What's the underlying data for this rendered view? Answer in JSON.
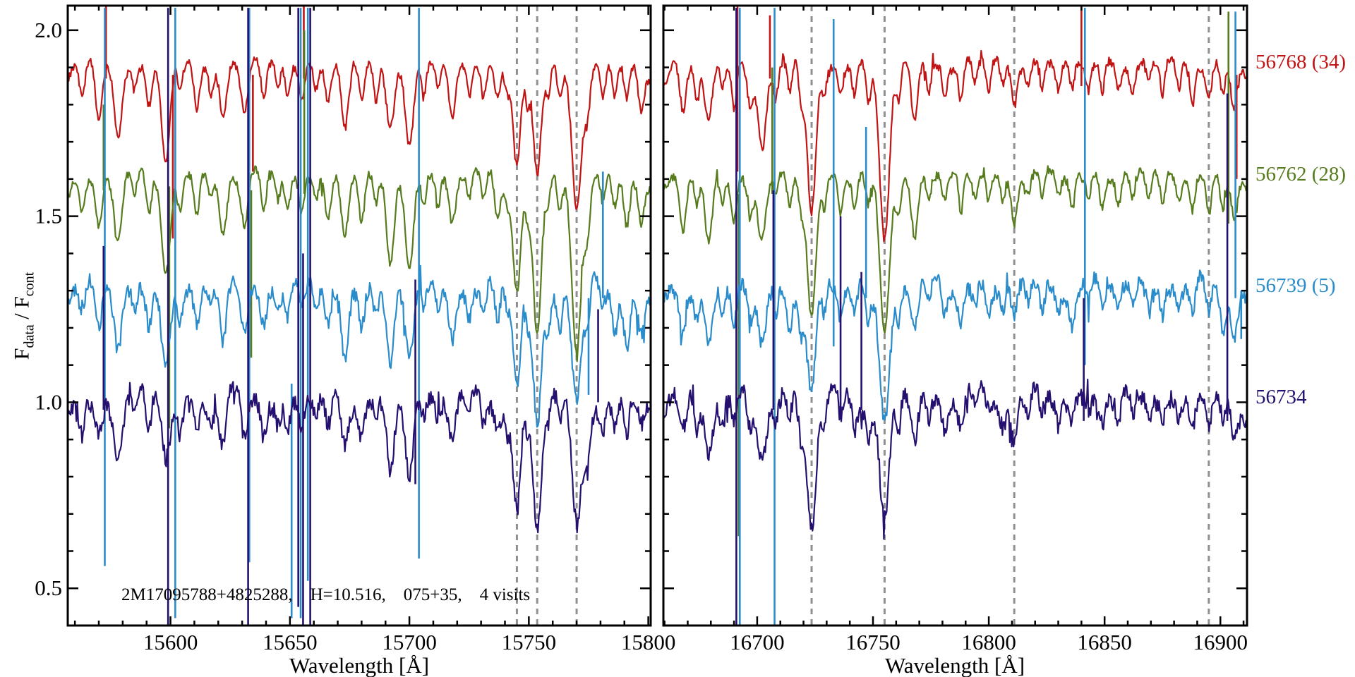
{
  "figure": {
    "background": "#ffffff",
    "xlabel": "Wavelength [Å]",
    "ylabel_f1": "F",
    "ylabel_sub1": "data",
    "ylabel_f2": " / F",
    "ylabel_sub2": "cont",
    "annotation": "2M17095788+4825288,    H=10.516,    075+35,    4 visits"
  },
  "chart_data": {
    "type": "line",
    "title": "",
    "xlabel": "Wavelength [Å]",
    "ylabel": "F_data / F_cont",
    "ylim": [
      0.4,
      2.066
    ],
    "yticks": [
      0.5,
      1.0,
      1.5,
      2.0
    ],
    "ytick_labels": [
      "0.5",
      "1.0",
      "1.5",
      "2.0"
    ],
    "y_minor_step": 0.1,
    "grid": false,
    "legend_position": "right-outside",
    "annotation": "2M17095788+4825288,  H=10.516,  075+35,  4 visits",
    "panels": [
      {
        "name": "left",
        "xlim": [
          15557,
          15801
        ],
        "xticks": [
          15600,
          15650,
          15700,
          15750,
          15800
        ],
        "xtick_labels": [
          "15600",
          "15650",
          "15700",
          "15750",
          "15800"
        ],
        "x_minor_step": 10,
        "dashed_lines": [
          15745,
          15753.5,
          15770
        ],
        "absorption_lines": [
          [
            15563,
            0.1,
            1.2
          ],
          [
            15570,
            0.13,
            1.3
          ],
          [
            15578,
            0.2,
            1.6
          ],
          [
            15585,
            0.07,
            1.0
          ],
          [
            15591,
            0.12,
            1.2
          ],
          [
            15598,
            0.24,
            1.8
          ],
          [
            15604,
            0.09,
            1.0
          ],
          [
            15611,
            0.1,
            1.1
          ],
          [
            15617,
            0.07,
            1.0
          ],
          [
            15622,
            0.15,
            1.4
          ],
          [
            15631,
            0.16,
            1.5
          ],
          [
            15639,
            0.1,
            1.1
          ],
          [
            15645,
            0.07,
            1.0
          ],
          [
            15649,
            0.09,
            1.0
          ],
          [
            15655,
            0.08,
            1.0
          ],
          [
            15661,
            0.07,
            1.0
          ],
          [
            15666,
            0.12,
            1.3
          ],
          [
            15673,
            0.17,
            1.5
          ],
          [
            15680,
            0.12,
            1.2
          ],
          [
            15686,
            0.09,
            1.0
          ],
          [
            15692,
            0.2,
            1.6
          ],
          [
            15700,
            0.22,
            1.7
          ],
          [
            15706,
            0.08,
            1.0
          ],
          [
            15712,
            0.07,
            1.0
          ],
          [
            15718,
            0.14,
            1.4
          ],
          [
            15725,
            0.07,
            1.0
          ],
          [
            15731,
            0.08,
            1.0
          ],
          [
            15737,
            0.1,
            1.2
          ],
          [
            15741,
            0.08,
            1.0
          ],
          [
            15745,
            0.32,
            1.6
          ],
          [
            15749.5,
            0.1,
            1.0
          ],
          [
            15753.5,
            0.37,
            1.7
          ],
          [
            15758,
            0.08,
            1.0
          ],
          [
            15763,
            0.1,
            1.1
          ],
          [
            15770,
            0.42,
            2.0
          ],
          [
            15774.5,
            0.15,
            1.2
          ],
          [
            15781,
            0.08,
            1.0
          ],
          [
            15786,
            0.1,
            1.1
          ],
          [
            15791,
            0.12,
            1.2
          ],
          [
            15797,
            0.12,
            1.3
          ]
        ]
      },
      {
        "name": "right",
        "xlim": [
          16659.5,
          16911.5
        ],
        "xticks": [
          16700,
          16750,
          16800,
          16850,
          16900
        ],
        "xtick_labels": [
          "16700",
          "16750",
          "16800",
          "16850",
          "16900"
        ],
        "x_minor_step": 10,
        "dashed_lines": [
          16723.5,
          16755,
          16811,
          16895
        ],
        "absorption_lines": [
          [
            16668,
            0.13,
            1.4
          ],
          [
            16674,
            0.1,
            1.1
          ],
          [
            16679,
            0.17,
            1.6
          ],
          [
            16685,
            0.08,
            1.0
          ],
          [
            16690,
            0.1,
            1.1
          ],
          [
            16697,
            0.12,
            1.3
          ],
          [
            16702,
            0.2,
            1.8
          ],
          [
            16708,
            0.08,
            1.0
          ],
          [
            16714,
            0.09,
            1.0
          ],
          [
            16719,
            0.1,
            1.1
          ],
          [
            16723.5,
            0.35,
            1.9
          ],
          [
            16729,
            0.09,
            1.0
          ],
          [
            16736,
            0.08,
            1.0
          ],
          [
            16742,
            0.09,
            1.0
          ],
          [
            16748,
            0.1,
            1.1
          ],
          [
            16755,
            0.4,
            2.1
          ],
          [
            16761,
            0.1,
            1.0
          ],
          [
            16768,
            0.14,
            1.4
          ],
          [
            16774,
            0.08,
            1.0
          ],
          [
            16781,
            0.07,
            1.0
          ],
          [
            16788,
            0.09,
            1.0
          ],
          [
            16794,
            0.06,
            1.0
          ],
          [
            16800,
            0.08,
            1.0
          ],
          [
            16806,
            0.07,
            1.0
          ],
          [
            16811,
            0.11,
            1.2
          ],
          [
            16817,
            0.06,
            1.0
          ],
          [
            16823,
            0.08,
            1.0
          ],
          [
            16830,
            0.07,
            1.0
          ],
          [
            16836,
            0.08,
            1.0
          ],
          [
            16843,
            0.06,
            1.0
          ],
          [
            16849,
            0.08,
            1.0
          ],
          [
            16856,
            0.07,
            1.0
          ],
          [
            16862,
            0.08,
            1.0
          ],
          [
            16869,
            0.06,
            1.0
          ],
          [
            16875,
            0.08,
            1.0
          ],
          [
            16882,
            0.07,
            1.0
          ],
          [
            16888,
            0.08,
            1.0
          ],
          [
            16895,
            0.1,
            1.2
          ],
          [
            16901,
            0.1,
            1.1
          ],
          [
            16906,
            0.13,
            1.4
          ]
        ]
      }
    ],
    "series": [
      {
        "label": "56768 (34)",
        "mjd": "56768",
        "color": "#c11414",
        "continuum": 1.91,
        "noise_hf": 0.012,
        "noise_lf": 0.01,
        "depth_scale": 1.02,
        "seed": 101,
        "spikes_left": [
          [
            15573,
            1.87,
            2.07
          ],
          [
            15601,
            1.88,
            1.44
          ],
          [
            15634.5,
            1.88,
            1.62
          ],
          [
            15655.8,
            1.87,
            2.07
          ]
        ],
        "spikes_right": [
          [
            16691.5,
            1.62,
            2.07
          ],
          [
            16705.5,
            1.87,
            2.04
          ],
          [
            16840,
            1.85,
            2.07
          ],
          [
            16907,
            1.88,
            1.6
          ]
        ]
      },
      {
        "label": "56762 (28)",
        "mjd": "56762",
        "color": "#567c1e",
        "continuum": 1.61,
        "noise_hf": 0.012,
        "noise_lf": 0.01,
        "depth_scale": 1.0,
        "seed": 202,
        "spikes_left": [
          [
            15572,
            1.57,
            1.8
          ],
          [
            15599.5,
            1.58,
            0.93
          ],
          [
            15633.8,
            1.57,
            1.12
          ],
          [
            15656,
            1.56,
            2.0
          ]
        ],
        "spikes_right": [
          [
            16692,
            1.56,
            0.64
          ],
          [
            16706.5,
            1.56,
            1.9
          ],
          [
            16903.5,
            1.48,
            2.05
          ]
        ]
      },
      {
        "label": "56739 (5)",
        "mjd": "56739",
        "color": "#2a8cca",
        "continuum": 1.31,
        "noise_hf": 0.02,
        "noise_lf": 0.017,
        "depth_scale": 0.92,
        "seed": 303,
        "spikes_left": [
          [
            15572.5,
            2.06,
            0.56
          ],
          [
            15602,
            2.06,
            0.42
          ],
          [
            15633,
            2.06,
            0.57
          ],
          [
            15650.7,
            1.05,
            0.42
          ],
          [
            15654.5,
            2.06,
            0.42
          ],
          [
            15657.5,
            2.06,
            0.52
          ],
          [
            15704,
            2.06,
            0.58
          ],
          [
            15775,
            1.28,
            1.02
          ],
          [
            15781,
            1.28,
            1.62
          ]
        ],
        "spikes_right": [
          [
            16692.5,
            2.06,
            0.4
          ],
          [
            16707.5,
            2.06,
            0.4
          ],
          [
            16733,
            1.15,
            2.03
          ],
          [
            16747,
            1.28,
            1.74
          ],
          [
            16841.5,
            2.06,
            1.1
          ],
          [
            16906.5,
            2.05,
            1.28
          ],
          [
            16909,
            1.3,
            1.17
          ]
        ]
      },
      {
        "label": "56734",
        "mjd": "56734",
        "color": "#251070",
        "continuum": 1.01,
        "noise_hf": 0.024,
        "noise_lf": 0.019,
        "depth_scale": 0.82,
        "seed": 404,
        "spikes_left": [
          [
            15572,
            0.98,
            1.42
          ],
          [
            15599,
            2.06,
            0.4
          ],
          [
            15632.5,
            2.06,
            0.4
          ],
          [
            15653.5,
            2.06,
            0.45
          ],
          [
            15655.5,
            1.4,
            0.4
          ],
          [
            15658.5,
            2.06,
            0.4
          ],
          [
            15702.5,
            1.33,
            0.78
          ],
          [
            15779,
            1.0,
            1.25
          ]
        ],
        "spikes_right": [
          [
            16691,
            2.06,
            0.4
          ],
          [
            16707,
            0.98,
            1.57
          ],
          [
            16736,
            0.97,
            1.5
          ],
          [
            16745,
            0.98,
            1.35
          ],
          [
            16841,
            0.95,
            1.28
          ],
          [
            16903,
            1.83,
            0.95
          ]
        ]
      }
    ],
    "colors": {
      "axis": "#000000",
      "dashed_marker": "#909090",
      "background": "#ffffff"
    }
  }
}
